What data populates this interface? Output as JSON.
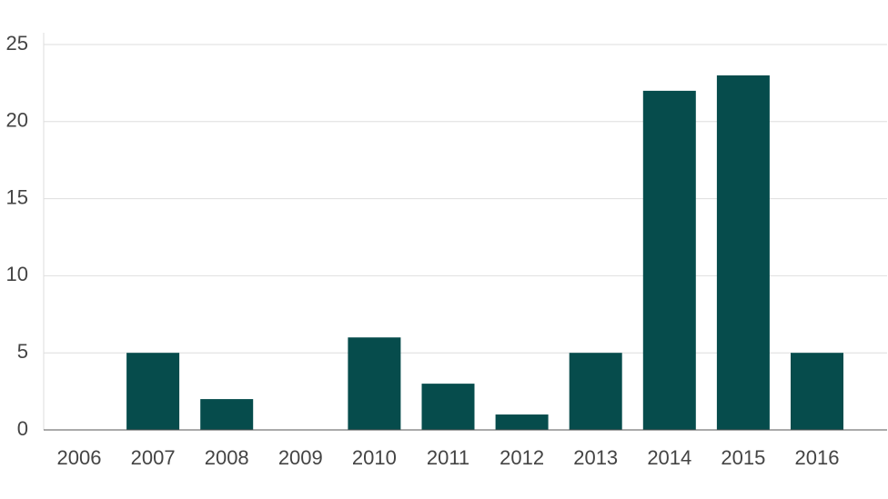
{
  "chart_data": {
    "type": "bar",
    "categories": [
      "2006",
      "2007",
      "2008",
      "2009",
      "2010",
      "2011",
      "2012",
      "2013",
      "2014",
      "2015",
      "2016"
    ],
    "values": [
      0,
      5,
      2,
      0,
      6,
      3,
      1,
      5,
      22,
      23,
      5
    ],
    "color": "#064c4c",
    "ylim": [
      0,
      25
    ],
    "yticks": [
      0,
      5,
      10,
      15,
      20,
      25
    ],
    "grid": true
  }
}
